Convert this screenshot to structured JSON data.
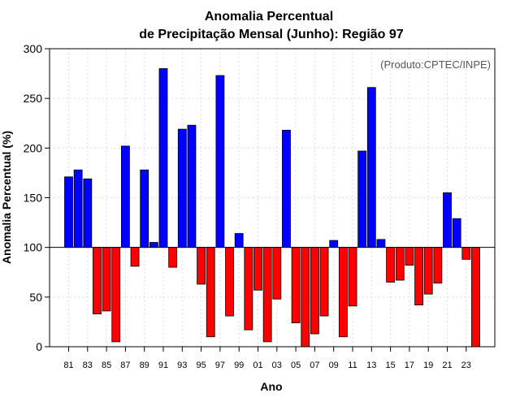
{
  "chart_data": {
    "type": "bar",
    "title": "Anomalia Percentual",
    "subtitle": "de Precipitação Mensal (Junho): Região 97",
    "xlabel": "Ano",
    "ylabel": "Anomalia Percentual (%)",
    "credit": "(Produto:CPTEC/INPE)",
    "ylim": [
      0,
      300
    ],
    "yticks": [
      0,
      50,
      100,
      150,
      200,
      250,
      300
    ],
    "baseline": 100,
    "grid": true,
    "colors": {
      "above": "#0000ff",
      "below": "#ff0000",
      "grid": "#dddddd",
      "axis": "#000000"
    },
    "categories": [
      "81",
      "82",
      "83",
      "84",
      "85",
      "86",
      "87",
      "88",
      "89",
      "90",
      "91",
      "92",
      "93",
      "94",
      "95",
      "96",
      "97",
      "98",
      "99",
      "00",
      "01",
      "02",
      "03",
      "04",
      "05",
      "06",
      "07",
      "08",
      "09",
      "10",
      "11",
      "12",
      "13",
      "14",
      "15",
      "16",
      "17",
      "18",
      "19",
      "20",
      "21",
      "22",
      "23",
      "24"
    ],
    "xtick_labels": [
      "81",
      "83",
      "85",
      "87",
      "89",
      "91",
      "93",
      "95",
      "97",
      "99",
      "01",
      "03",
      "05",
      "07",
      "09",
      "11",
      "13",
      "15",
      "17",
      "19",
      "21",
      "23"
    ],
    "values": [
      171,
      178,
      169,
      33,
      36,
      5,
      202,
      81,
      178,
      105,
      280,
      80,
      219,
      223,
      63,
      10,
      273,
      31,
      114,
      17,
      57,
      5,
      48,
      218,
      24,
      0,
      13,
      31,
      107,
      10,
      41,
      197,
      261,
      108,
      65,
      67,
      82,
      42,
      53,
      64,
      155,
      129,
      88,
      0
    ]
  }
}
